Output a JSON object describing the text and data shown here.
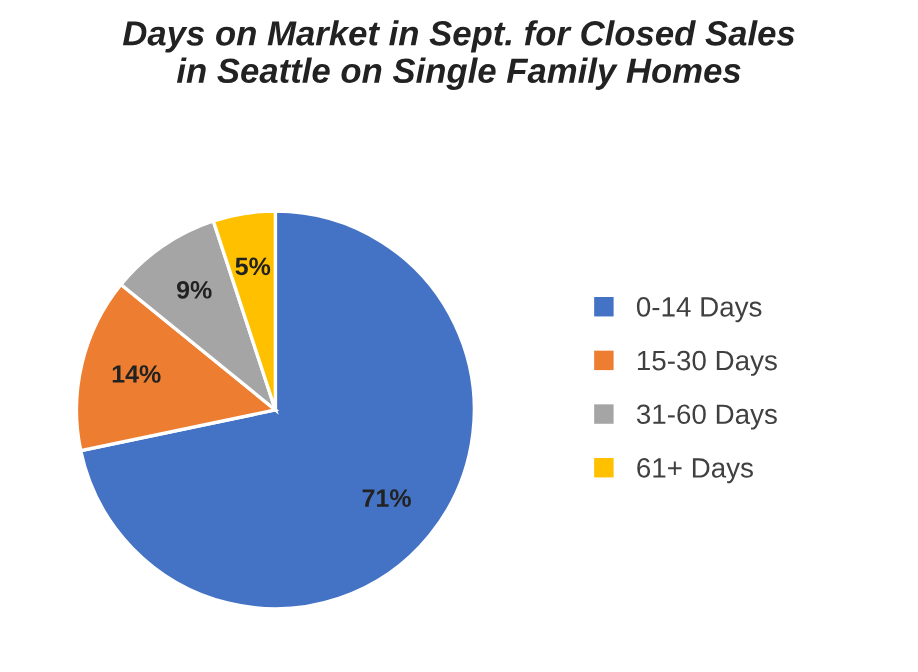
{
  "chart_data": {
    "type": "pie",
    "title": "Days on Market in Sept. for Closed Sales\nin Seattle on Single Family Homes",
    "categories": [
      "0-14 Days",
      "15-30 Days",
      "31-60 Days",
      "61+ Days"
    ],
    "values": [
      71,
      14,
      9,
      5
    ],
    "value_labels": [
      "71%",
      "14%",
      "9%",
      "5%"
    ],
    "colors": [
      "#4472c4",
      "#ed7d31",
      "#a5a5a5",
      "#ffc000"
    ],
    "legend": "right"
  }
}
